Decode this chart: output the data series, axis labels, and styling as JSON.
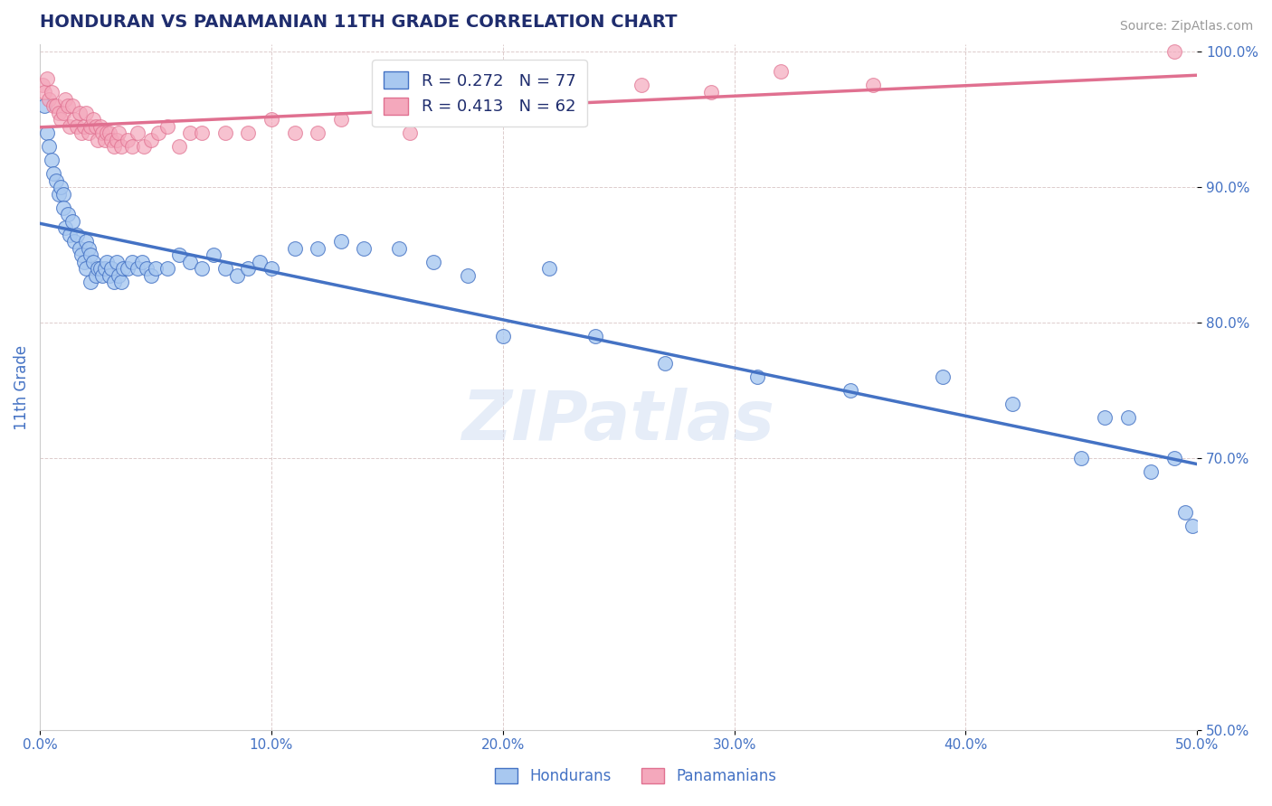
{
  "title": "HONDURAN VS PANAMANIAN 11TH GRADE CORRELATION CHART",
  "source": "Source: ZipAtlas.com",
  "ylabel": "11th Grade",
  "xlim": [
    0.0,
    0.5
  ],
  "ylim": [
    0.5,
    1.005
  ],
  "xtick_labels": [
    "0.0%",
    "10.0%",
    "20.0%",
    "30.0%",
    "40.0%",
    "50.0%"
  ],
  "xtick_vals": [
    0.0,
    0.1,
    0.2,
    0.3,
    0.4,
    0.5
  ],
  "ytick_labels": [
    "100.0%",
    "90.0%",
    "80.0%",
    "70.0%",
    "50.0%"
  ],
  "ytick_vals": [
    1.0,
    0.9,
    0.8,
    0.7,
    0.5
  ],
  "blue_color": "#A8C8F0",
  "pink_color": "#F4A8BC",
  "blue_line_color": "#4472C4",
  "pink_line_color": "#E07090",
  "legend_blue_R": 0.272,
  "legend_blue_N": 77,
  "legend_pink_R": 0.413,
  "legend_pink_N": 62,
  "title_color": "#1F2D6E",
  "axis_label_color": "#4472C4",
  "tick_color": "#4472C4",
  "watermark": "ZIPatlas",
  "blue_x": [
    0.002,
    0.003,
    0.004,
    0.005,
    0.006,
    0.007,
    0.008,
    0.009,
    0.01,
    0.01,
    0.011,
    0.012,
    0.013,
    0.014,
    0.015,
    0.016,
    0.017,
    0.018,
    0.019,
    0.02,
    0.02,
    0.021,
    0.022,
    0.022,
    0.023,
    0.024,
    0.025,
    0.026,
    0.027,
    0.028,
    0.029,
    0.03,
    0.031,
    0.032,
    0.033,
    0.034,
    0.035,
    0.036,
    0.038,
    0.04,
    0.042,
    0.044,
    0.046,
    0.048,
    0.05,
    0.055,
    0.06,
    0.065,
    0.07,
    0.075,
    0.08,
    0.085,
    0.09,
    0.095,
    0.1,
    0.11,
    0.12,
    0.13,
    0.14,
    0.155,
    0.17,
    0.185,
    0.2,
    0.22,
    0.24,
    0.27,
    0.31,
    0.35,
    0.39,
    0.42,
    0.45,
    0.46,
    0.47,
    0.48,
    0.49,
    0.495,
    0.498
  ],
  "blue_y": [
    0.96,
    0.94,
    0.93,
    0.92,
    0.91,
    0.905,
    0.895,
    0.9,
    0.895,
    0.885,
    0.87,
    0.88,
    0.865,
    0.875,
    0.86,
    0.865,
    0.855,
    0.85,
    0.845,
    0.86,
    0.84,
    0.855,
    0.85,
    0.83,
    0.845,
    0.835,
    0.84,
    0.84,
    0.835,
    0.84,
    0.845,
    0.835,
    0.84,
    0.83,
    0.845,
    0.835,
    0.83,
    0.84,
    0.84,
    0.845,
    0.84,
    0.845,
    0.84,
    0.835,
    0.84,
    0.84,
    0.85,
    0.845,
    0.84,
    0.85,
    0.84,
    0.835,
    0.84,
    0.845,
    0.84,
    0.855,
    0.855,
    0.86,
    0.855,
    0.855,
    0.845,
    0.835,
    0.79,
    0.84,
    0.79,
    0.77,
    0.76,
    0.75,
    0.76,
    0.74,
    0.7,
    0.73,
    0.73,
    0.69,
    0.7,
    0.66,
    0.65
  ],
  "pink_x": [
    0.001,
    0.002,
    0.003,
    0.004,
    0.005,
    0.006,
    0.007,
    0.008,
    0.009,
    0.01,
    0.011,
    0.012,
    0.013,
    0.014,
    0.015,
    0.016,
    0.017,
    0.018,
    0.019,
    0.02,
    0.021,
    0.022,
    0.023,
    0.024,
    0.025,
    0.026,
    0.027,
    0.028,
    0.029,
    0.03,
    0.031,
    0.032,
    0.033,
    0.034,
    0.035,
    0.038,
    0.04,
    0.042,
    0.045,
    0.048,
    0.051,
    0.055,
    0.06,
    0.065,
    0.07,
    0.08,
    0.09,
    0.1,
    0.11,
    0.12,
    0.13,
    0.15,
    0.16,
    0.17,
    0.19,
    0.21,
    0.23,
    0.26,
    0.29,
    0.32,
    0.36,
    0.49
  ],
  "pink_y": [
    0.975,
    0.97,
    0.98,
    0.965,
    0.97,
    0.96,
    0.96,
    0.955,
    0.95,
    0.955,
    0.965,
    0.96,
    0.945,
    0.96,
    0.95,
    0.945,
    0.955,
    0.94,
    0.945,
    0.955,
    0.94,
    0.945,
    0.95,
    0.945,
    0.935,
    0.945,
    0.94,
    0.935,
    0.94,
    0.94,
    0.935,
    0.93,
    0.935,
    0.94,
    0.93,
    0.935,
    0.93,
    0.94,
    0.93,
    0.935,
    0.94,
    0.945,
    0.93,
    0.94,
    0.94,
    0.94,
    0.94,
    0.95,
    0.94,
    0.94,
    0.95,
    0.955,
    0.94,
    0.955,
    0.95,
    0.955,
    0.96,
    0.975,
    0.97,
    0.985,
    0.975,
    1.0
  ]
}
